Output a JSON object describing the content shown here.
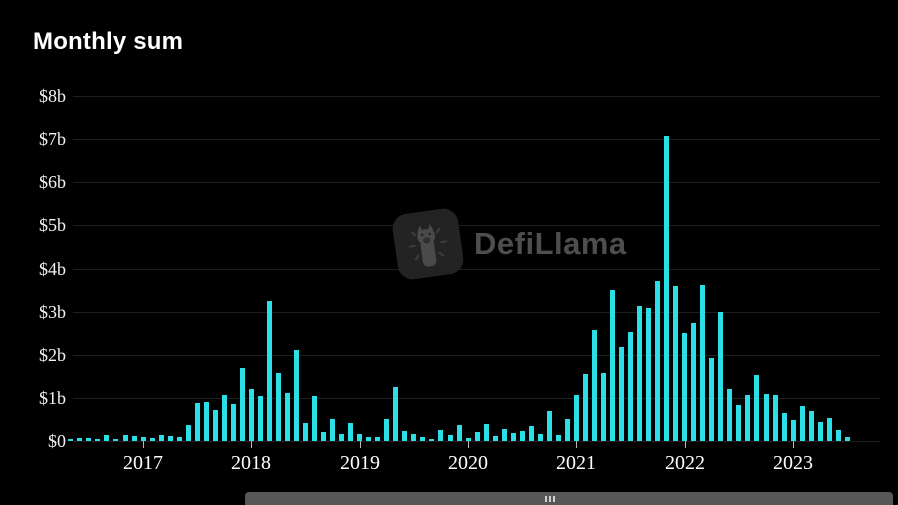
{
  "title": "Monthly sum",
  "watermark": {
    "brand": "DefiLlama",
    "logo": "llama-icon"
  },
  "colors": {
    "background": "#000000",
    "bar": "#2adfe6",
    "grid": "#1e1e1e",
    "axis_label": "#f2f2f2",
    "watermark_text": "#4e4e4e",
    "scrollbar": "#575757"
  },
  "scrollbar": {
    "grip": "|||"
  },
  "chart_data": {
    "type": "bar",
    "title": "Monthly sum",
    "unit": "USD billions (monthly sum)",
    "ylabel": "",
    "xlabel": "",
    "ylim": [
      0,
      8
    ],
    "grid": true,
    "legend": false,
    "y_ticks": [
      "$8b",
      "$7b",
      "$6b",
      "$5b",
      "$4b",
      "$3b",
      "$2b",
      "$1b",
      "$0"
    ],
    "x_ticks": [
      "2017",
      "2018",
      "2019",
      "2020",
      "2021",
      "2022",
      "2023"
    ],
    "x": [
      "2016-05",
      "2016-06",
      "2016-07",
      "2016-08",
      "2016-09",
      "2016-10",
      "2016-11",
      "2016-12",
      "2017-01",
      "2017-02",
      "2017-03",
      "2017-04",
      "2017-05",
      "2017-06",
      "2017-07",
      "2017-08",
      "2017-09",
      "2017-10",
      "2017-11",
      "2017-12",
      "2018-01",
      "2018-02",
      "2018-03",
      "2018-04",
      "2018-05",
      "2018-06",
      "2018-07",
      "2018-08",
      "2018-09",
      "2018-10",
      "2018-11",
      "2018-12",
      "2019-01",
      "2019-02",
      "2019-03",
      "2019-04",
      "2019-05",
      "2019-06",
      "2019-07",
      "2019-08",
      "2019-09",
      "2019-10",
      "2019-11",
      "2019-12",
      "2020-01",
      "2020-02",
      "2020-03",
      "2020-04",
      "2020-05",
      "2020-06",
      "2020-07",
      "2020-08",
      "2020-09",
      "2020-10",
      "2020-11",
      "2020-12",
      "2021-01",
      "2021-02",
      "2021-03",
      "2021-04",
      "2021-05",
      "2021-06",
      "2021-07",
      "2021-08",
      "2021-09",
      "2021-10",
      "2021-11",
      "2021-12",
      "2022-01",
      "2022-02",
      "2022-03",
      "2022-04",
      "2022-05",
      "2022-06",
      "2022-07",
      "2022-08",
      "2022-09",
      "2022-10",
      "2022-11",
      "2022-12",
      "2023-01",
      "2023-02",
      "2023-03",
      "2023-04",
      "2023-05",
      "2023-06",
      "2023-07"
    ],
    "values": [
      0.05,
      0.07,
      0.07,
      0.05,
      0.14,
      0.05,
      0.14,
      0.12,
      0.1,
      0.08,
      0.15,
      0.12,
      0.1,
      0.37,
      0.88,
      0.91,
      0.72,
      1.07,
      0.86,
      1.7,
      1.2,
      1.05,
      3.25,
      1.58,
      1.11,
      2.12,
      0.42,
      1.05,
      0.21,
      0.51,
      0.16,
      0.42,
      0.16,
      0.09,
      0.1,
      0.51,
      1.25,
      0.23,
      0.16,
      0.09,
      0.05,
      0.26,
      0.14,
      0.37,
      0.07,
      0.21,
      0.4,
      0.12,
      0.28,
      0.19,
      0.23,
      0.35,
      0.16,
      0.7,
      0.14,
      0.51,
      1.07,
      1.56,
      2.58,
      1.58,
      3.51,
      2.19,
      2.53,
      3.14,
      3.09,
      3.7,
      7.07,
      3.6,
      2.51,
      2.74,
      3.61,
      1.93,
      2.98,
      1.21,
      0.84,
      1.07,
      1.53,
      1.09,
      1.07,
      0.66,
      0.49,
      0.8,
      0.7,
      0.43,
      0.53,
      0.26,
      0.09
    ]
  }
}
